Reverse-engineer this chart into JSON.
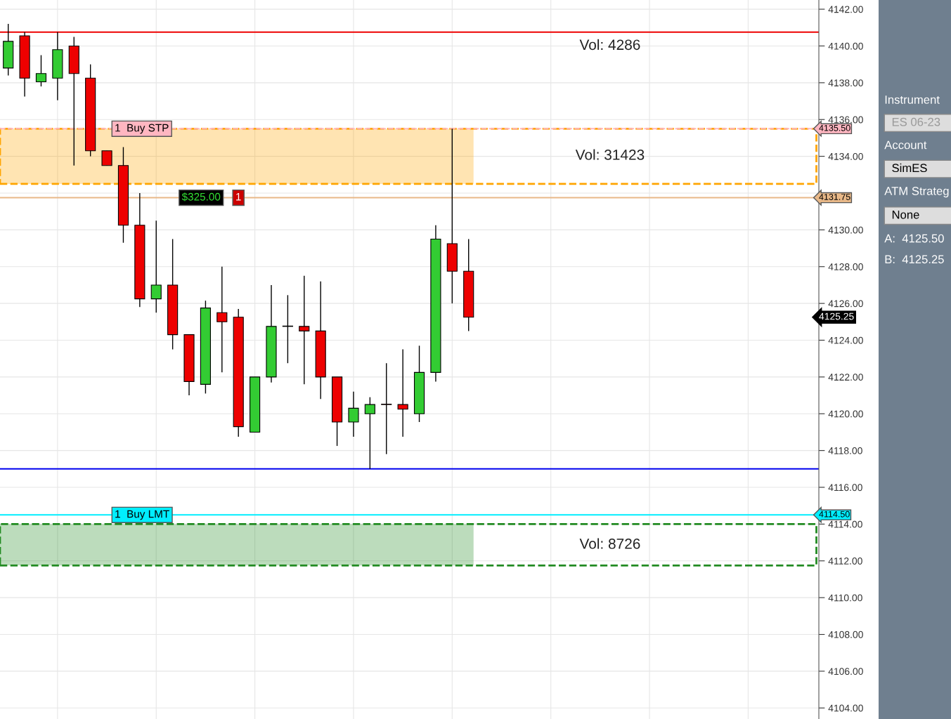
{
  "chart_data": {
    "type": "candlestick",
    "categories": [
      null,
      null,
      null,
      null,
      null,
      null,
      null,
      null,
      null,
      null,
      null,
      null,
      null,
      null,
      null,
      null,
      null,
      null,
      null,
      null,
      null,
      null,
      null,
      null,
      null,
      null,
      null,
      null,
      null,
      null,
      null,
      null,
      null,
      null,
      null,
      null,
      null,
      null,
      null,
      null,
      null,
      null,
      null,
      null,
      null,
      null,
      null,
      null,
      null,
      null
    ],
    "ohlc": [
      [
        4138.8,
        4141.2,
        4138.4,
        4140.25
      ],
      [
        4140.55,
        4140.75,
        4137.25,
        4138.25
      ],
      [
        4138.05,
        4139.5,
        4137.8,
        4138.5
      ],
      [
        4138.25,
        4140.75,
        4137.05,
        4139.8
      ],
      [
        4140.0,
        4140.5,
        4133.5,
        4138.5
      ],
      [
        4138.25,
        4139.0,
        4134.0,
        4134.3
      ],
      [
        4134.3,
        4134.3,
        4133.5,
        4133.5
      ],
      [
        4133.5,
        4134.5,
        4129.3,
        4130.25
      ],
      [
        4130.25,
        4132.0,
        4125.8,
        4126.25
      ],
      [
        4126.25,
        4130.5,
        4125.5,
        4127.0
      ],
      [
        4127.0,
        4129.5,
        4123.5,
        4124.3
      ],
      [
        4124.3,
        4124.3,
        4121.0,
        4121.75
      ],
      [
        4121.6,
        4126.15,
        4121.1,
        4125.75
      ],
      [
        4125.5,
        4128.0,
        4122.25,
        4125.0
      ],
      [
        4125.25,
        4125.7,
        4118.75,
        4119.3
      ],
      [
        4119.0,
        4122.0,
        4119.0,
        4122.0
      ],
      [
        4122.0,
        4127.0,
        4121.7,
        4124.75
      ],
      [
        4124.75,
        4126.45,
        4122.75,
        4124.75
      ],
      [
        4124.75,
        4127.5,
        4121.6,
        4124.5
      ],
      [
        4124.5,
        4127.2,
        4120.8,
        4122.0
      ],
      [
        4122.0,
        4122.0,
        4118.25,
        4119.55
      ],
      [
        4119.55,
        4121.2,
        4118.75,
        4120.3
      ],
      [
        4120.0,
        4120.9,
        4117.0,
        4120.5
      ],
      [
        4120.5,
        4122.75,
        4117.8,
        4120.5
      ],
      [
        4120.5,
        4123.5,
        4118.75,
        4120.25
      ],
      [
        4120.0,
        4123.7,
        4119.55,
        4122.25
      ],
      [
        4122.25,
        4130.25,
        4121.75,
        4129.5
      ],
      [
        4129.25,
        4135.5,
        4126.0,
        4127.75
      ],
      [
        4127.75,
        4129.5,
        4124.5,
        4125.25
      ],
      null,
      null,
      null,
      null,
      null,
      null,
      null,
      null,
      null,
      null,
      null,
      null,
      null,
      null,
      null,
      null,
      null,
      null,
      null,
      null,
      null
    ],
    "colors": [
      "#33cc33",
      "#ee0000",
      "#33cc33",
      "#33cc33",
      "#ee0000",
      "#ee0000",
      "#ee0000",
      "#ee0000",
      "#ee0000",
      "#33cc33",
      "#ee0000",
      "#ee0000",
      "#33cc33",
      "#ee0000",
      "#ee0000",
      "#33cc33",
      "#33cc33",
      "#ee0000",
      "#ee0000",
      "#ee0000",
      "#ee0000",
      "#33cc33",
      "#33cc33",
      "#ee0000",
      "#ee0000",
      "#33cc33",
      "#33cc33",
      "#ee0000",
      "#ee0000",
      null,
      null,
      null,
      null,
      null,
      null,
      null,
      null,
      null,
      null,
      null,
      null,
      null,
      null,
      null,
      null,
      null,
      null,
      null,
      null,
      null
    ],
    "ylim": [
      4103.4,
      4142.5
    ],
    "yticks": [
      {
        "value": 4104,
        "label": "4104.00"
      },
      {
        "value": 4106,
        "label": "4106.00"
      },
      {
        "value": 4108,
        "label": "4108.00"
      },
      {
        "value": 4110,
        "label": "4110.00"
      },
      {
        "value": 4112,
        "label": "4112.00"
      },
      {
        "value": 4114,
        "label": "4114.00"
      },
      {
        "value": 4116,
        "label": "4116.00"
      },
      {
        "value": 4118,
        "label": "4118.00"
      },
      {
        "value": 4120,
        "label": "4120.00"
      },
      {
        "value": 4122,
        "label": "4122.00"
      },
      {
        "value": 4124,
        "label": "4124.00"
      },
      {
        "value": 4126,
        "label": "4126.00"
      },
      {
        "value": 4128,
        "label": "4128.00"
      },
      {
        "value": 4130,
        "label": "4130.00"
      },
      {
        "value": 4132,
        "label": null
      },
      {
        "value": 4134,
        "label": "4134.00"
      },
      {
        "value": 4136,
        "label": "4136.00"
      },
      {
        "value": 4138,
        "label": "4138.00"
      },
      {
        "value": 4140,
        "label": "4140.00"
      },
      {
        "value": 4142,
        "label": "4142.00"
      }
    ],
    "tick_labels": "y",
    "grid": true,
    "ref_lines": [
      {
        "axis": "y",
        "value": 4140.75,
        "label": null,
        "color": "#ee0000",
        "line_style": "solid"
      },
      {
        "axis": "y",
        "value": 4117.0,
        "label": null,
        "color": "#0000ee",
        "line_style": "solid"
      },
      {
        "axis": "y",
        "value": 4135.5,
        "label": "4135.50",
        "color": "#ffb6c1",
        "line_style": "dashed"
      },
      {
        "axis": "y",
        "value": 4131.75,
        "label": "4131.75",
        "color": "#e8b888",
        "line_style": "solid"
      },
      {
        "axis": "y",
        "value": 4114.5,
        "label": "4114.50",
        "color": "#00eeff",
        "line_style": "solid"
      }
    ],
    "bands": [
      {
        "axis": "y",
        "from": 4132.5,
        "to": 4135.5,
        "color": "#ffa500"
      },
      {
        "axis": "y",
        "from": 4111.75,
        "to": 4114.0,
        "color": "#228b22"
      }
    ],
    "annotations": [
      "Vol: 4286",
      "Vol: 31423",
      "Vol: 8726",
      "4125.25",
      {
        "text": "1  Buy STP",
        "y": 4135.5
      },
      {
        "text": "$325.00",
        "y": 4131.75
      },
      {
        "text": "1",
        "y": 4131.75
      },
      {
        "text": "1  Buy LMT",
        "y": 4114.5
      },
      "Instrument",
      "ES 06-23",
      "Account",
      "SimES",
      "ATM Strateg",
      "None",
      "A:  4125.50",
      "B:  4125.25"
    ]
  }
}
